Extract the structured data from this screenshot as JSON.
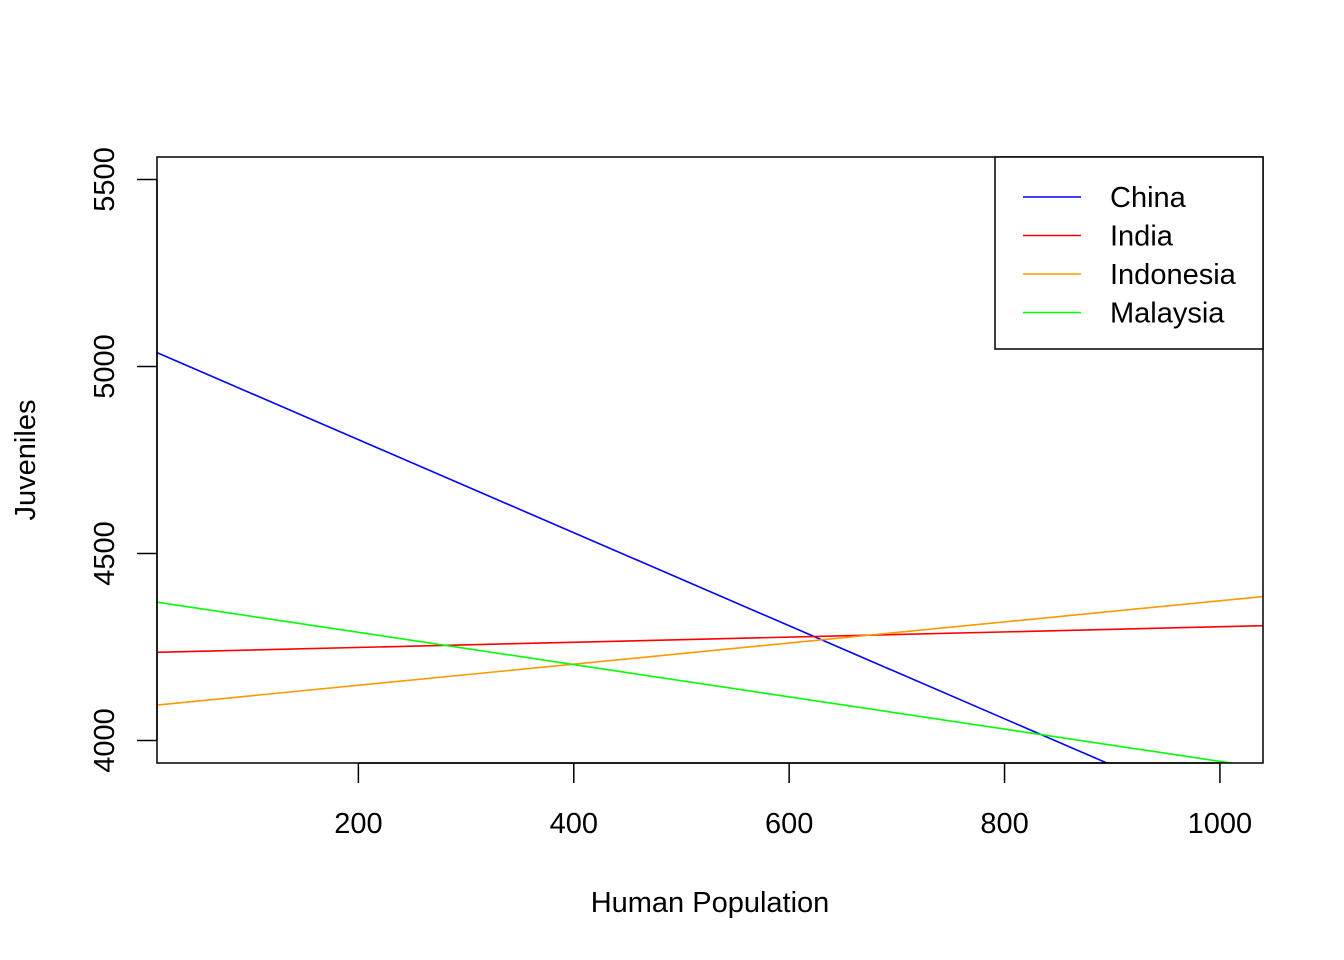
{
  "chart_data": {
    "type": "line",
    "title": "",
    "xlabel": "Human Population",
    "ylabel": "Juveniles",
    "xlim": [
      13,
      1040
    ],
    "ylim": [
      3940,
      5560
    ],
    "xticks": [
      200,
      400,
      600,
      800,
      1000
    ],
    "xtick_labels": [
      "200",
      "400",
      "600",
      "800",
      "1000"
    ],
    "yticks": [
      4000,
      4500,
      5000,
      5500
    ],
    "ytick_labels": [
      "4000",
      "4500",
      "5000",
      "5500"
    ],
    "grid": false,
    "legend_position": "top-right",
    "series": [
      {
        "name": "China",
        "color": "#0000ff",
        "x": [
          13,
          895
        ],
        "y": [
          5037,
          3940
        ]
      },
      {
        "name": "India",
        "color": "#ff0000",
        "x": [
          13,
          1040
        ],
        "y": [
          4236,
          4307
        ]
      },
      {
        "name": "Indonesia",
        "color": "#ff9900",
        "x": [
          13,
          1040
        ],
        "y": [
          4095,
          4385
        ]
      },
      {
        "name": "Malaysia",
        "color": "#00ff00",
        "x": [
          13,
          1010
        ],
        "y": [
          4370,
          3940
        ]
      }
    ]
  }
}
